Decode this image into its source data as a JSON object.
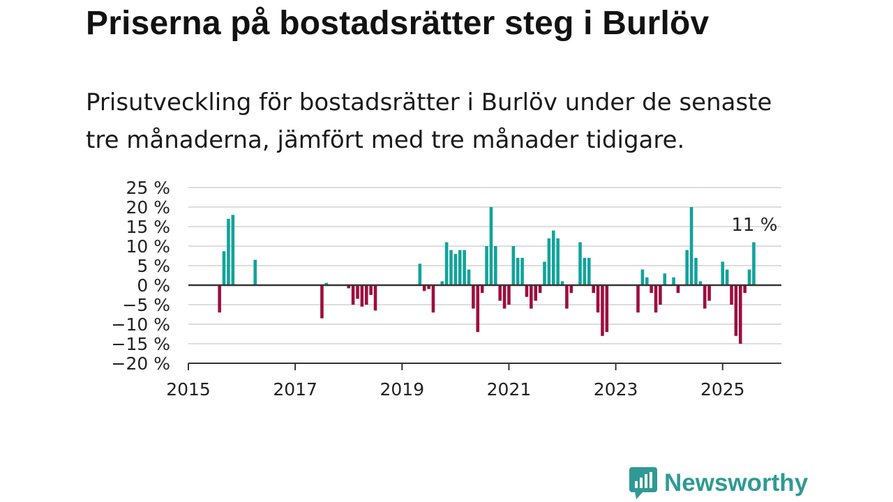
{
  "title": "Priserna på bostadsrätter steg i Burlöv",
  "subtitle": "Prisutveckling för bostadsrätter i Burlöv under de senaste tre månaderna, jämfört med tre månader tidigare.",
  "brand": {
    "name": "Newsworthy",
    "color": "#2f9a93"
  },
  "colors": {
    "positive": "#12a39b",
    "negative": "#9e0e3f",
    "grid": "#dddddd",
    "zero_line": "#333333"
  },
  "chart_data": {
    "type": "bar",
    "y_tick_labels": [
      "25 %",
      "20 %",
      "15 %",
      "10 %",
      "5 %",
      "0 %",
      "−5 %",
      "−10 %",
      "−15 %",
      "−20 %"
    ],
    "y_ticks": [
      25,
      20,
      15,
      10,
      5,
      0,
      -5,
      -10,
      -15,
      -20
    ],
    "ylim": [
      -20,
      25
    ],
    "x_tick_labels": [
      "2015",
      "2017",
      "2019",
      "2021",
      "2023",
      "2025"
    ],
    "x_ticks": [
      2015,
      2017,
      2019,
      2021,
      2023,
      2025
    ],
    "xlim": [
      2015,
      2026.1
    ],
    "grid": true,
    "annotation": {
      "text": "11 %",
      "x": "2025-08",
      "y": 11
    },
    "series": [
      {
        "values": [
          {
            "x": "2015-08",
            "y": -7
          },
          {
            "x": "2015-09",
            "y": 8.7
          },
          {
            "x": "2015-10",
            "y": 17
          },
          {
            "x": "2015-11",
            "y": 18
          },
          {
            "x": "2016-04",
            "y": 6.5
          },
          {
            "x": "2017-07",
            "y": -8.5
          },
          {
            "x": "2017-08",
            "y": 0.6
          },
          {
            "x": "2018-01",
            "y": -0.8
          },
          {
            "x": "2018-02",
            "y": -5
          },
          {
            "x": "2018-03",
            "y": -3.5
          },
          {
            "x": "2018-04",
            "y": -5.5
          },
          {
            "x": "2018-05",
            "y": -5
          },
          {
            "x": "2018-06",
            "y": -2.5
          },
          {
            "x": "2018-07",
            "y": -6.5
          },
          {
            "x": "2019-05",
            "y": 5.5
          },
          {
            "x": "2019-06",
            "y": -1.5
          },
          {
            "x": "2019-07",
            "y": -1
          },
          {
            "x": "2019-08",
            "y": -7
          },
          {
            "x": "2019-10",
            "y": 1
          },
          {
            "x": "2019-11",
            "y": 11
          },
          {
            "x": "2019-12",
            "y": 9
          },
          {
            "x": "2020-01",
            "y": 8
          },
          {
            "x": "2020-02",
            "y": 9
          },
          {
            "x": "2020-03",
            "y": 9
          },
          {
            "x": "2020-04",
            "y": 4
          },
          {
            "x": "2020-05",
            "y": -6
          },
          {
            "x": "2020-06",
            "y": -12
          },
          {
            "x": "2020-07",
            "y": -2
          },
          {
            "x": "2020-08",
            "y": 10
          },
          {
            "x": "2020-09",
            "y": 20
          },
          {
            "x": "2020-10",
            "y": 10
          },
          {
            "x": "2020-11",
            "y": -4
          },
          {
            "x": "2020-12",
            "y": -6
          },
          {
            "x": "2021-01",
            "y": -5
          },
          {
            "x": "2021-02",
            "y": 10
          },
          {
            "x": "2021-03",
            "y": 7
          },
          {
            "x": "2021-04",
            "y": 7
          },
          {
            "x": "2021-05",
            "y": -3
          },
          {
            "x": "2021-06",
            "y": -6
          },
          {
            "x": "2021-07",
            "y": -4
          },
          {
            "x": "2021-08",
            "y": -2
          },
          {
            "x": "2021-09",
            "y": 6
          },
          {
            "x": "2021-10",
            "y": 12
          },
          {
            "x": "2021-11",
            "y": 14
          },
          {
            "x": "2021-12",
            "y": 12
          },
          {
            "x": "2022-01",
            "y": 1
          },
          {
            "x": "2022-02",
            "y": -6
          },
          {
            "x": "2022-03",
            "y": -2
          },
          {
            "x": "2022-05",
            "y": 11
          },
          {
            "x": "2022-06",
            "y": 7
          },
          {
            "x": "2022-07",
            "y": 7
          },
          {
            "x": "2022-08",
            "y": -2
          },
          {
            "x": "2022-09",
            "y": -7
          },
          {
            "x": "2022-10",
            "y": -13
          },
          {
            "x": "2022-11",
            "y": -12
          },
          {
            "x": "2023-06",
            "y": -7
          },
          {
            "x": "2023-07",
            "y": 4
          },
          {
            "x": "2023-08",
            "y": 2
          },
          {
            "x": "2023-09",
            "y": -2
          },
          {
            "x": "2023-10",
            "y": -7
          },
          {
            "x": "2023-11",
            "y": -5
          },
          {
            "x": "2023-12",
            "y": 3
          },
          {
            "x": "2024-02",
            "y": 2
          },
          {
            "x": "2024-03",
            "y": -2
          },
          {
            "x": "2024-05",
            "y": 9
          },
          {
            "x": "2024-06",
            "y": 20
          },
          {
            "x": "2024-07",
            "y": 7
          },
          {
            "x": "2024-08",
            "y": 1
          },
          {
            "x": "2024-09",
            "y": -6
          },
          {
            "x": "2024-10",
            "y": -4
          },
          {
            "x": "2025-01",
            "y": 6
          },
          {
            "x": "2025-02",
            "y": 4
          },
          {
            "x": "2025-03",
            "y": -5
          },
          {
            "x": "2025-04",
            "y": -13
          },
          {
            "x": "2025-05",
            "y": -15
          },
          {
            "x": "2025-06",
            "y": -2
          },
          {
            "x": "2025-07",
            "y": 4
          },
          {
            "x": "2025-08",
            "y": 11
          }
        ]
      }
    ]
  }
}
